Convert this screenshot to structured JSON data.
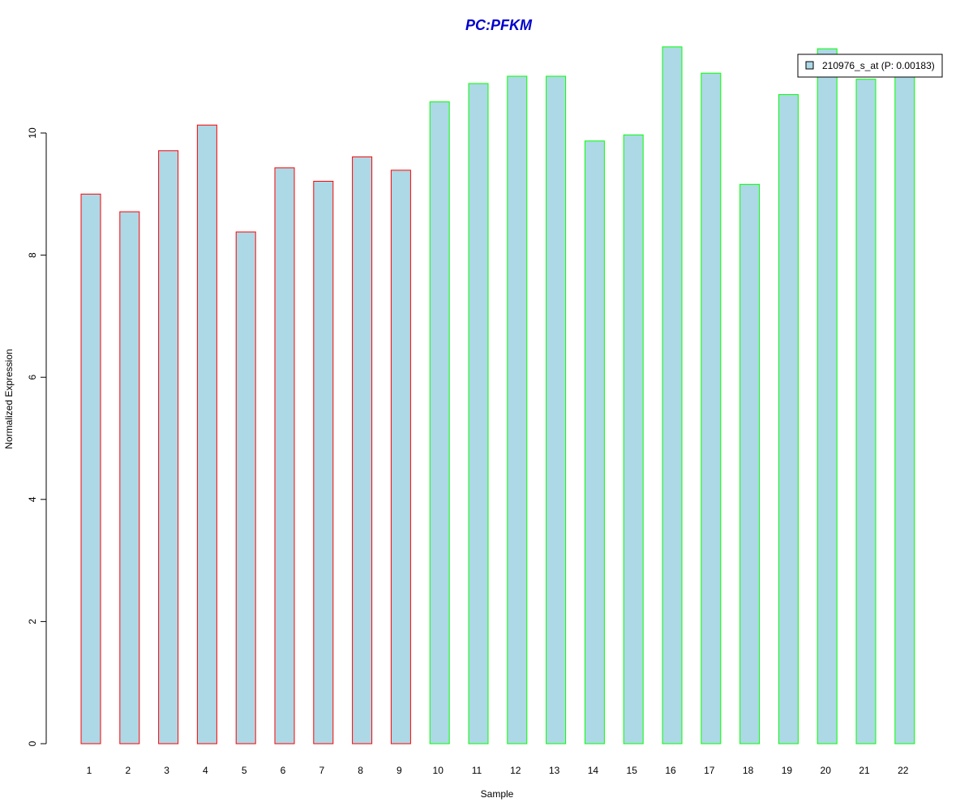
{
  "chart_data": {
    "type": "bar",
    "title": "PC:PFKM",
    "title_color": "#0000cc",
    "xlabel": "Sample",
    "ylabel": "Normalized Expression",
    "categories": [
      "1",
      "2",
      "3",
      "4",
      "5",
      "6",
      "7",
      "8",
      "9",
      "10",
      "11",
      "12",
      "13",
      "14",
      "15",
      "16",
      "17",
      "18",
      "19",
      "20",
      "21",
      "22"
    ],
    "series": [
      {
        "name": "210976_s_at (P: 0.00183)",
        "values": [
          9.0,
          8.71,
          9.71,
          10.13,
          8.38,
          9.43,
          9.21,
          9.61,
          9.39,
          10.51,
          10.81,
          10.93,
          10.93,
          9.87,
          9.97,
          11.41,
          10.98,
          9.16,
          10.63,
          11.38,
          10.88,
          11.08
        ],
        "fill": "#add8e6"
      }
    ],
    "group_border_colors": [
      "#ff0000",
      "#ff0000",
      "#ff0000",
      "#ff0000",
      "#ff0000",
      "#ff0000",
      "#ff0000",
      "#ff0000",
      "#ff0000",
      "#00ff00",
      "#00ff00",
      "#00ff00",
      "#00ff00",
      "#00ff00",
      "#00ff00",
      "#00ff00",
      "#00ff00",
      "#00ff00",
      "#00ff00",
      "#00ff00",
      "#00ff00",
      "#00ff00"
    ],
    "ylim": [
      0,
      11.5
    ],
    "yticks": [
      0,
      2,
      4,
      6,
      8,
      10
    ],
    "legend": {
      "position": "top-right",
      "label": "210976_s_at (P: 0.00183)",
      "swatch_fill": "#add8e6"
    },
    "grid": false
  }
}
